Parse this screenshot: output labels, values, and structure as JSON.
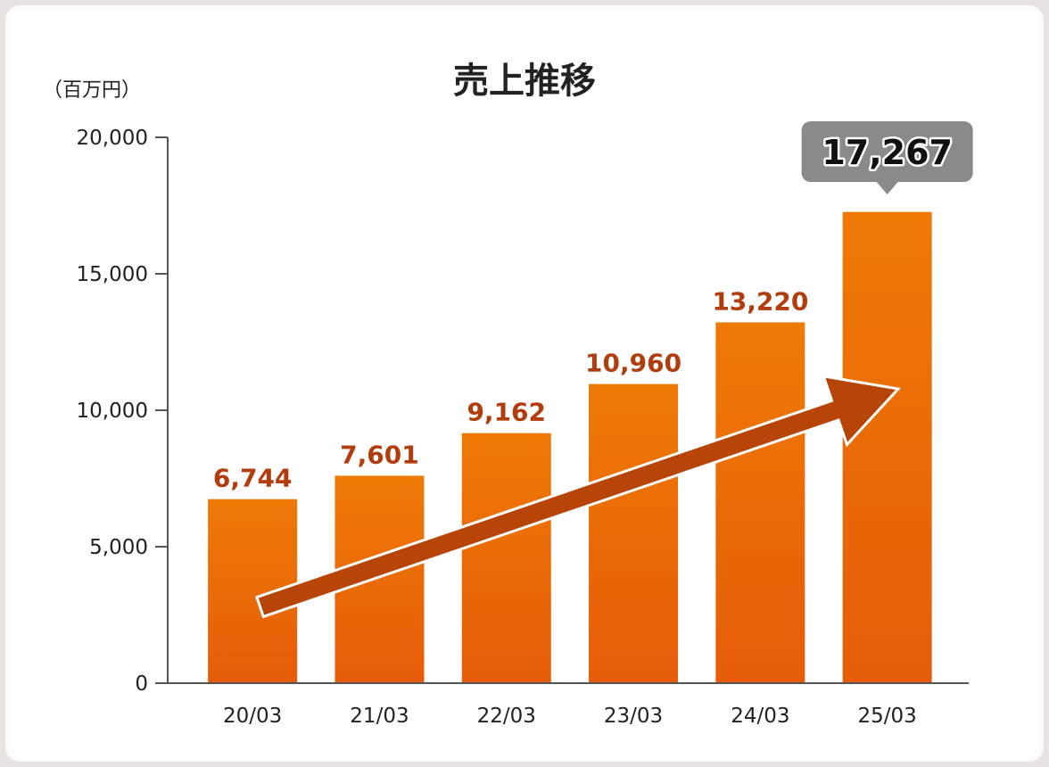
{
  "chart_data": {
    "type": "bar",
    "title": "売上推移",
    "unit_label": "（百万円）",
    "categories": [
      "20/03",
      "21/03",
      "22/03",
      "23/03",
      "24/03",
      "25/03"
    ],
    "values": [
      6744,
      7601,
      9162,
      10960,
      13220,
      17267
    ],
    "value_labels": [
      "6,744",
      "7,601",
      "9,162",
      "10,960",
      "13,220",
      "17,267"
    ],
    "y_ticks": [
      0,
      5000,
      10000,
      15000,
      20000
    ],
    "y_tick_labels": [
      "0",
      "5,000",
      "10,000",
      "15,000",
      "20,000"
    ],
    "ylim": [
      0,
      20000
    ],
    "grid": false,
    "highlight_index": 5,
    "trend_arrow": true
  },
  "colors": {
    "bar_top": "#ee7a06",
    "bar_bottom": "#e65c08",
    "label": "#b23c0c",
    "arrow": "#b84508",
    "callout_bg": "#8a8a8a",
    "axis": "#555555"
  }
}
